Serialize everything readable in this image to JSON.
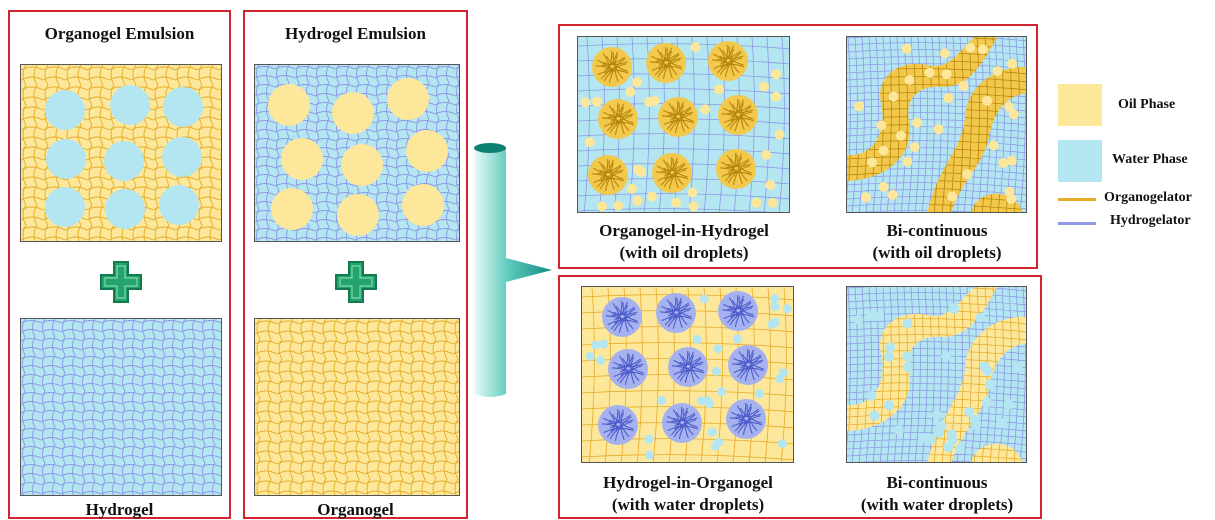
{
  "columns": {
    "left": {
      "title": "Organogel Emulsion",
      "bottom_label": "Hydrogel"
    },
    "middle": {
      "title": "Hydrogel Emulsion",
      "bottom_label": "Organogel"
    }
  },
  "results": {
    "top_left": {
      "line1": "Organogel-in-Hydrogel",
      "line2": "(with oil droplets)"
    },
    "top_right": {
      "line1": "Bi-continuous",
      "line2": "(with oil droplets)"
    },
    "bottom_left": {
      "line1": "Hydrogel-in-Organogel",
      "line2": "(with water droplets)"
    },
    "bottom_right": {
      "line1": "Bi-continuous",
      "line2": "(with water droplets)"
    }
  },
  "legend": {
    "oil": "Oil Phase",
    "water": "Water Phase",
    "organogelator": "Organogelator",
    "hydrogelator": "Hydrogelator"
  },
  "colors": {
    "oil": "#fce79a",
    "water": "#b4e6f2",
    "organogelator": "#e6ac29",
    "hydrogelator": "#8e98e6",
    "frame": "#d1242f",
    "plus_fill": "#23a46d",
    "plus_stroke": "#137a4d",
    "funnel": "#1aa294"
  }
}
